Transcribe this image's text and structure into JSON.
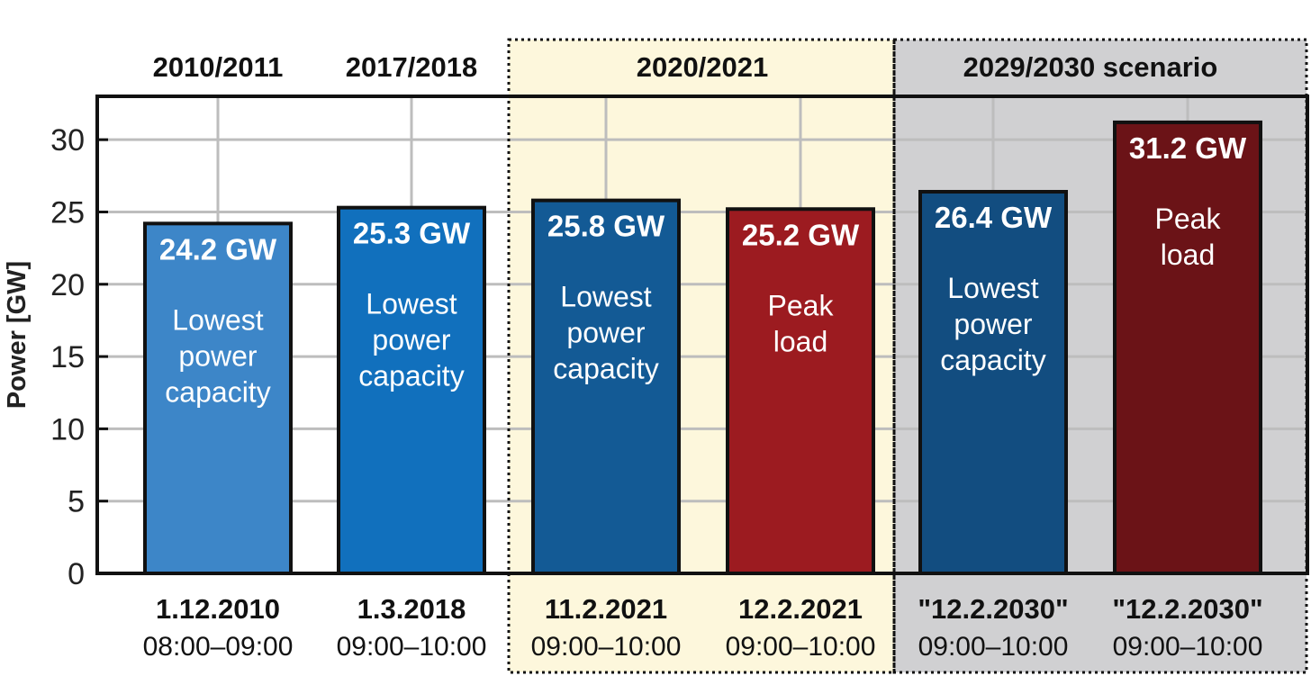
{
  "chart_data": {
    "type": "bar",
    "ylabel": "Power [GW]",
    "ylim": [
      0,
      33
    ],
    "yticks": [
      0,
      5,
      10,
      15,
      20,
      25,
      30
    ],
    "grid": true,
    "groups": [
      {
        "title": "2010/2011",
        "shading": "none"
      },
      {
        "title": "2017/2018",
        "shading": "none"
      },
      {
        "title": "2020/2021",
        "shading": "#fdf7dc",
        "border": "dotted"
      },
      {
        "title": "2029/2030 scenario",
        "shading": "#d0d0d2",
        "border": "dotted"
      }
    ],
    "bars": [
      {
        "group": 0,
        "value": 24.2,
        "value_label": "24.2 GW",
        "desc": [
          "Lowest",
          "power",
          "capacity"
        ],
        "date": "1.12.2010",
        "time": "08:00–09:00",
        "color": "#3d86c8"
      },
      {
        "group": 1,
        "value": 25.3,
        "value_label": "25.3 GW",
        "desc": [
          "Lowest",
          "power",
          "capacity"
        ],
        "date": "1.3.2018",
        "time": "09:00–10:00",
        "color": "#1170bd"
      },
      {
        "group": 2,
        "value": 25.8,
        "value_label": "25.8 GW",
        "desc": [
          "Lowest",
          "power",
          "capacity"
        ],
        "date": "11.2.2021",
        "time": "09:00–10:00",
        "color": "#135a95"
      },
      {
        "group": 2,
        "value": 25.2,
        "value_label": "25.2 GW",
        "desc": [
          "Peak",
          "load"
        ],
        "date": "12.2.2021",
        "time": "09:00–10:00",
        "color": "#9c1b20"
      },
      {
        "group": 3,
        "value": 26.4,
        "value_label": "26.4 GW",
        "desc": [
          "Lowest",
          "power",
          "capacity"
        ],
        "date": "\"12.2.2030\"",
        "time": "09:00–10:00",
        "color": "#124d80"
      },
      {
        "group": 3,
        "value": 31.2,
        "value_label": "31.2 GW",
        "desc": [
          "Peak",
          "load"
        ],
        "date": "\"12.2.2030\"",
        "time": "09:00–10:00",
        "color": "#6b1317"
      }
    ]
  }
}
